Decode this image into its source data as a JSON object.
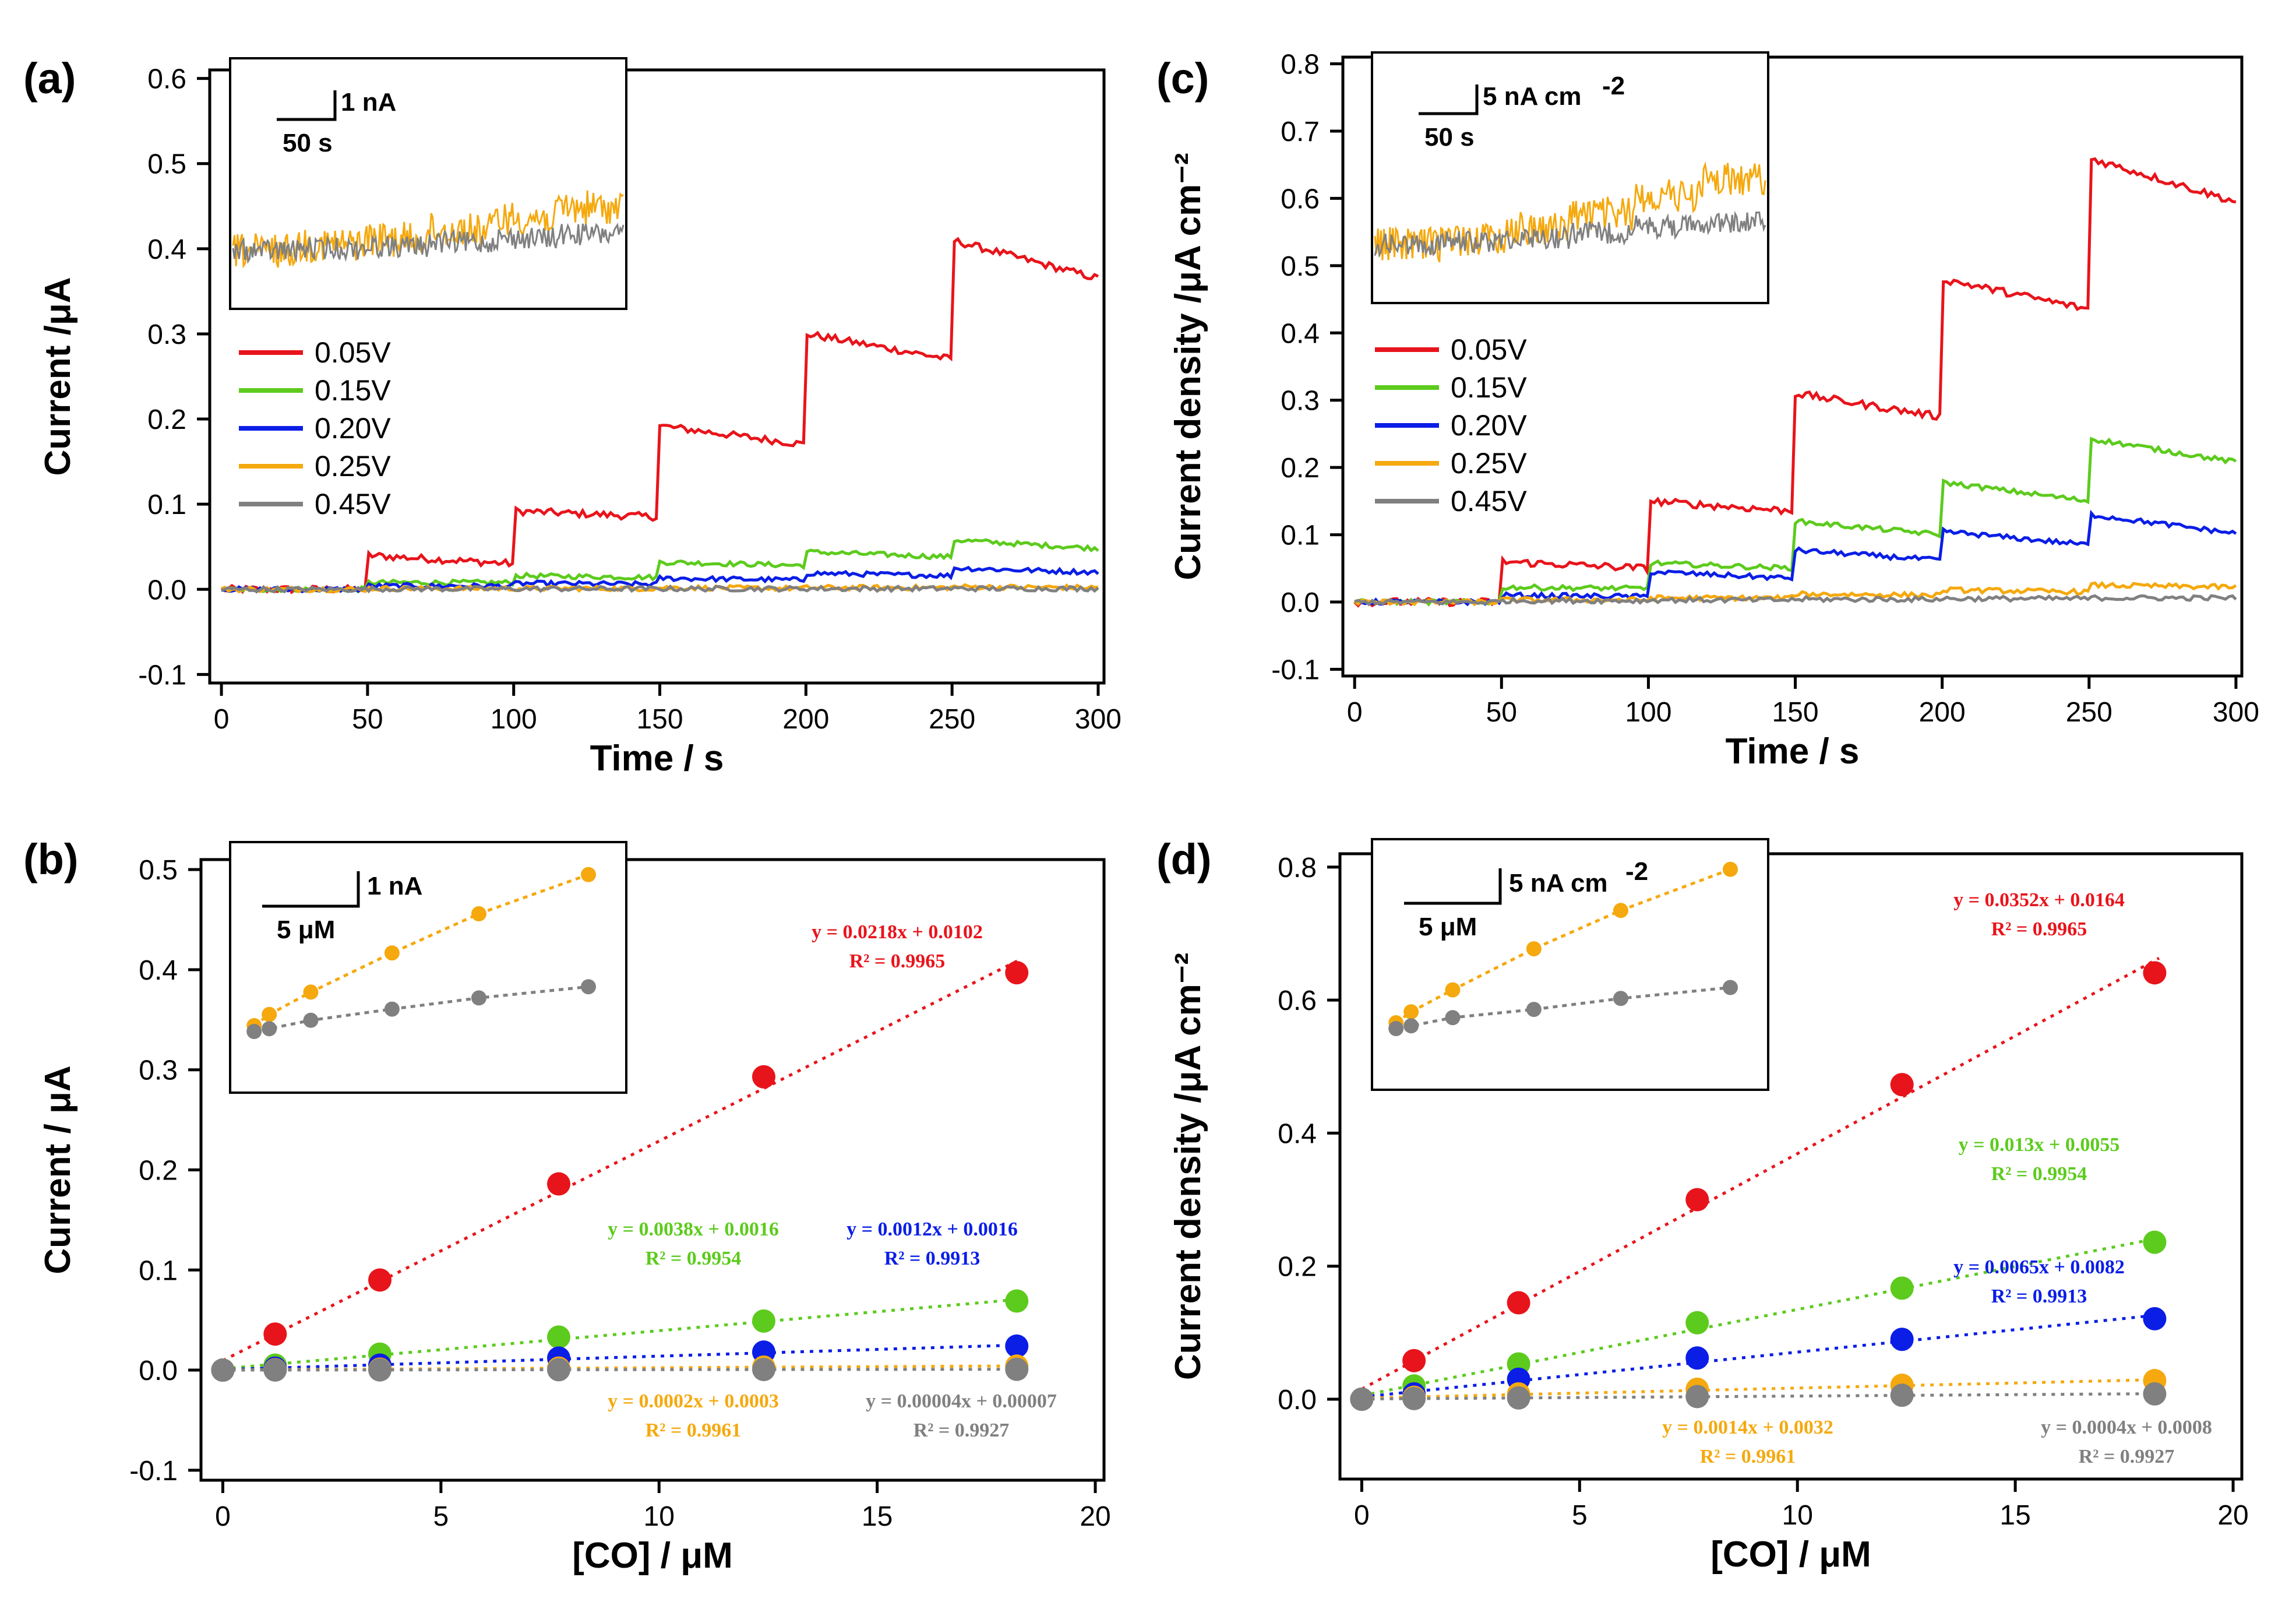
{
  "chart_data": [
    {
      "id": "a",
      "panel_label": "(a)",
      "type": "line",
      "xlabel": "Time / s",
      "ylabel": "Current /μA",
      "xlim": [
        -4,
        302
      ],
      "ylim": [
        -0.11,
        0.61
      ],
      "xticks": [
        "0",
        "50",
        "100",
        "150",
        "200",
        "250",
        "300"
      ],
      "yticks": [
        "-0.1",
        "0.0",
        "0.1",
        "0.2",
        "0.3",
        "0.4",
        "0.5",
        "0.6"
      ],
      "legend": [
        "0.05V",
        "0.15V",
        "0.20V",
        "0.25V",
        "0.45V"
      ],
      "series_colors": [
        "#e8141b",
        "#5ccb1d",
        "#0a1ee6",
        "#f5a90e",
        "#808080"
      ],
      "steps": [
        [
          [
            0,
            0.035
          ],
          [
            0.04,
            0.03
          ],
          [
            0.092,
            0.085
          ],
          [
            0.192,
            0.17
          ],
          [
            0.3,
            0.27
          ],
          [
            0.41,
            0.365
          ]
        ],
        [
          [
            0,
            0.008
          ],
          [
            0.008,
            0.008
          ],
          [
            0.016,
            0.014
          ],
          [
            0.032,
            0.028
          ],
          [
            0.044,
            0.038
          ],
          [
            0.058,
            0.048
          ]
        ],
        [
          [
            0,
            0.003
          ],
          [
            0.004,
            0.004
          ],
          [
            0.007,
            0.006
          ],
          [
            0.013,
            0.011
          ],
          [
            0.019,
            0.016
          ],
          [
            0.025,
            0.02
          ]
        ],
        [
          [
            0,
            0.001
          ],
          [
            0.001,
            0.001
          ],
          [
            0.001,
            0.001
          ],
          [
            0.002,
            0.001
          ],
          [
            0.002,
            0.002
          ],
          [
            0.003,
            0.002
          ]
        ],
        [
          [
            0,
            0.0005
          ],
          [
            0.0005,
            0.0005
          ],
          [
            0.0006,
            0.0006
          ],
          [
            0.0007,
            0.0007
          ],
          [
            0.0008,
            0.0008
          ],
          [
            0.0009,
            0.0009
          ]
        ]
      ],
      "inset": {
        "scale_y": "1 nA",
        "scale_x": "50 s",
        "orange_steps": [
          0,
          0.3,
          0.55,
          1.0,
          1.6,
          2.1
        ],
        "gray_steps": [
          0,
          0.1,
          0.2,
          0.4,
          0.6,
          0.8
        ]
      }
    },
    {
      "id": "c",
      "panel_label": "(c)",
      "type": "line",
      "xlabel": "Time / s",
      "ylabel": "Current density /μA cm⁻²",
      "xlim": [
        -4,
        302
      ],
      "ylim": [
        -0.11,
        0.81
      ],
      "xticks": [
        "0",
        "50",
        "100",
        "150",
        "200",
        "250",
        "300"
      ],
      "yticks": [
        "-0.1",
        "0.0",
        "0.1",
        "0.2",
        "0.3",
        "0.4",
        "0.5",
        "0.6",
        "0.7",
        "0.8"
      ],
      "legend": [
        "0.05V",
        "0.15V",
        "0.20V",
        "0.25V",
        "0.45V"
      ],
      "series_colors": [
        "#e8141b",
        "#5ccb1d",
        "#0a1ee6",
        "#f5a90e",
        "#808080"
      ],
      "steps": [
        [
          [
            0,
            0.0
          ],
          [
            0.06,
            0.05
          ],
          [
            0.15,
            0.135
          ],
          [
            0.31,
            0.275
          ],
          [
            0.48,
            0.435
          ],
          [
            0.66,
            0.595
          ]
        ],
        [
          [
            0,
            0.0
          ],
          [
            0.022,
            0.02
          ],
          [
            0.058,
            0.05
          ],
          [
            0.12,
            0.1
          ],
          [
            0.178,
            0.15
          ],
          [
            0.243,
            0.208
          ]
        ],
        [
          [
            0,
            0.0
          ],
          [
            0.01,
            0.008
          ],
          [
            0.045,
            0.035
          ],
          [
            0.077,
            0.062
          ],
          [
            0.105,
            0.085
          ],
          [
            0.13,
            0.102
          ]
        ],
        [
          [
            0,
            0.0
          ],
          [
            0.003,
            0.003
          ],
          [
            0.006,
            0.006
          ],
          [
            0.012,
            0.01
          ],
          [
            0.018,
            0.015
          ],
          [
            0.025,
            0.022
          ]
        ],
        [
          [
            0,
            0.0
          ],
          [
            0.002,
            0.002
          ],
          [
            0.003,
            0.003
          ],
          [
            0.004,
            0.004
          ],
          [
            0.005,
            0.005
          ],
          [
            0.006,
            0.006
          ]
        ]
      ],
      "inset": {
        "scale_y": "5 nA cm",
        "scale_y_sup": "-2",
        "scale_x": "50 s",
        "orange_steps": [
          0,
          0.3,
          0.8,
          1.5,
          2.4,
          3.2
        ],
        "gray_steps": [
          0,
          0.15,
          0.35,
          0.6,
          0.9,
          1.1
        ]
      }
    },
    {
      "id": "b",
      "panel_label": "(b)",
      "type": "scatter",
      "xlabel": "[CO] / μM",
      "ylabel": "Current / μA",
      "xlim": [
        -0.5,
        20.2
      ],
      "ylim": [
        -0.11,
        0.51
      ],
      "xticks": [
        "0",
        "5",
        "10",
        "15",
        "20"
      ],
      "yticks": [
        "-0.1",
        "0.0",
        "0.1",
        "0.2",
        "0.3",
        "0.4",
        "0.5"
      ],
      "x": [
        0,
        1.2,
        3.6,
        7.7,
        12.4,
        18.2
      ],
      "series": [
        {
          "name": "0.05V",
          "color": "#e8141b",
          "values": [
            0.0,
            0.036,
            0.09,
            0.186,
            0.293,
            0.397
          ]
        },
        {
          "name": "0.15V",
          "color": "#5ccb1d",
          "values": [
            0.0,
            0.005,
            0.016,
            0.033,
            0.049,
            0.069
          ]
        },
        {
          "name": "0.20V",
          "color": "#0a1ee6",
          "values": [
            0.0,
            0.002,
            0.005,
            0.012,
            0.018,
            0.024
          ]
        },
        {
          "name": "0.25V",
          "color": "#f5a90e",
          "values": [
            0.0,
            0.0005,
            0.001,
            0.002,
            0.003,
            0.004
          ]
        },
        {
          "name": "0.45V",
          "color": "#808080",
          "values": [
            0.0,
            0.0001,
            0.0002,
            0.0004,
            0.0006,
            0.0008
          ]
        }
      ],
      "fits": [
        {
          "color": "#e8141b",
          "eq": "y = 0.0218x + 0.0102",
          "r2": "R² = 0.9965"
        },
        {
          "color": "#5ccb1d",
          "eq": "y = 0.0038x + 0.0016",
          "r2": "R² = 0.9954"
        },
        {
          "color": "#0a1ee6",
          "eq": "y = 0.0012x + 0.0016",
          "r2": "R² = 0.9913"
        },
        {
          "color": "#f5a90e",
          "eq": "y = 0.0002x + 0.0003",
          "r2": "R² = 0.9961"
        },
        {
          "color": "#808080",
          "eq": "y = 0.00004x + 0.00007",
          "r2": "R² = 0.9927"
        }
      ],
      "inset": {
        "scale_y": "1 nA",
        "scale_x": "5 μM",
        "x": [
          0.5,
          1.3,
          3.5,
          7.8,
          12.4,
          18.2
        ],
        "orange": [
          0.0,
          0.2,
          0.6,
          1.3,
          2.0,
          2.7
        ],
        "gray": [
          0.0,
          0.05,
          0.2,
          0.4,
          0.6,
          0.8
        ]
      }
    },
    {
      "id": "d",
      "panel_label": "(d)",
      "type": "scatter",
      "xlabel": "[CO] / μM",
      "ylabel": "Current density /μA cm⁻²",
      "xlim": [
        -0.5,
        20.2
      ],
      "ylim": [
        -0.12,
        0.82
      ],
      "xticks": [
        "0",
        "5",
        "10",
        "15",
        "20"
      ],
      "yticks": [
        "0.0",
        "0.2",
        "0.4",
        "0.6",
        "0.8"
      ],
      "x": [
        0,
        1.2,
        3.6,
        7.7,
        12.4,
        18.2
      ],
      "series": [
        {
          "name": "0.05V",
          "color": "#e8141b",
          "values": [
            0.0,
            0.058,
            0.145,
            0.3,
            0.473,
            0.641
          ]
        },
        {
          "name": "0.15V",
          "color": "#5ccb1d",
          "values": [
            0.0,
            0.02,
            0.053,
            0.115,
            0.167,
            0.236
          ]
        },
        {
          "name": "0.20V",
          "color": "#0a1ee6",
          "values": [
            0.0,
            0.008,
            0.03,
            0.062,
            0.09,
            0.121
          ]
        },
        {
          "name": "0.25V",
          "color": "#f5a90e",
          "values": [
            0.0,
            0.003,
            0.008,
            0.015,
            0.021,
            0.028
          ]
        },
        {
          "name": "0.45V",
          "color": "#808080",
          "values": [
            0.0,
            0.001,
            0.002,
            0.004,
            0.006,
            0.008
          ]
        }
      ],
      "fits": [
        {
          "color": "#e8141b",
          "eq": "y = 0.0352x + 0.0164",
          "r2": "R² = 0.9965"
        },
        {
          "color": "#5ccb1d",
          "eq": "y = 0.013x + 0.0055",
          "r2": "R² = 0.9954"
        },
        {
          "color": "#0a1ee6",
          "eq": "y = 0.0065x + 0.0082",
          "r2": "R² = 0.9913"
        },
        {
          "color": "#f5a90e",
          "eq": "y = 0.0014x + 0.0032",
          "r2": "R² = 0.9961"
        },
        {
          "color": "#808080",
          "eq": "y = 0.0004x + 0.0008",
          "r2": "R² = 0.9927"
        }
      ],
      "inset": {
        "scale_y": "5 nA cm",
        "scale_y_sup": "-2",
        "scale_x": "5 μM",
        "x": [
          0.5,
          1.3,
          3.5,
          7.8,
          12.4,
          18.2
        ],
        "orange": [
          0.0,
          0.4,
          1.2,
          2.7,
          4.1,
          5.6
        ],
        "gray": [
          0.0,
          0.1,
          0.4,
          0.7,
          1.1,
          1.5
        ]
      }
    }
  ]
}
